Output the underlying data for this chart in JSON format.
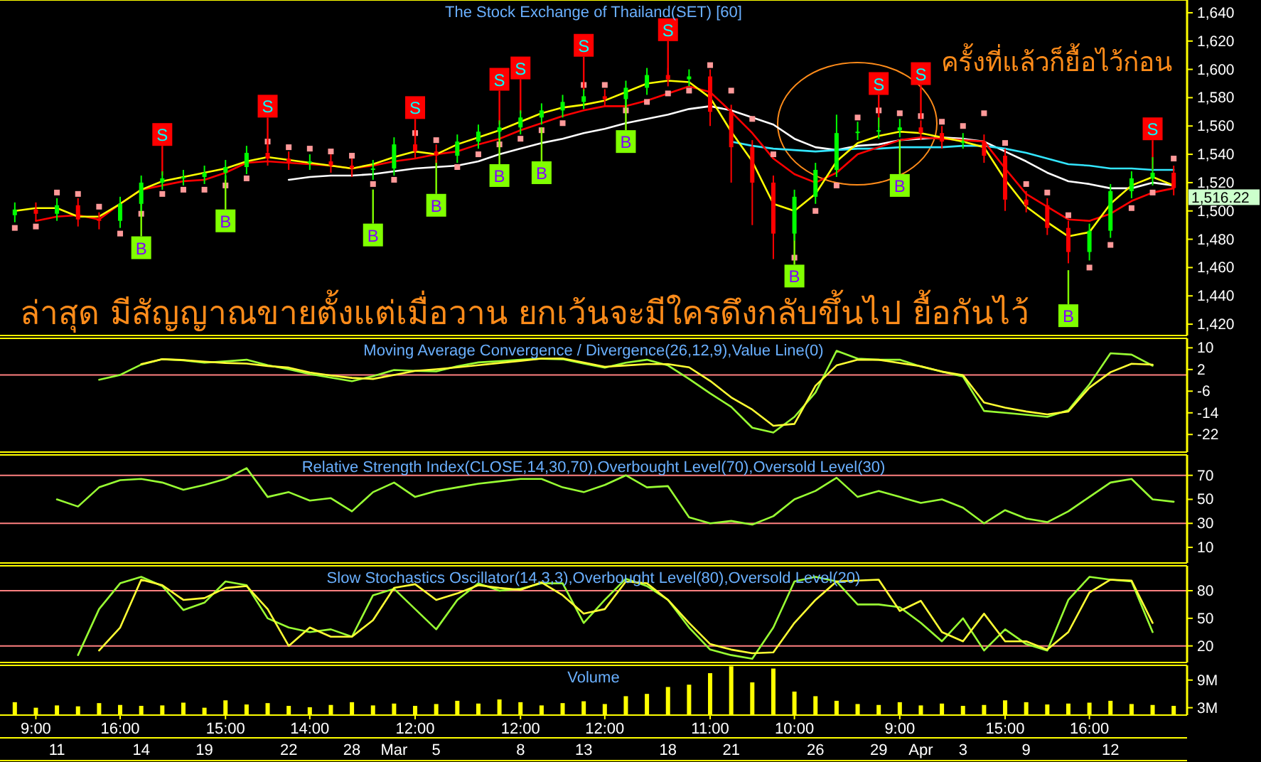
{
  "chart_data": [
    {
      "type": "candlestick",
      "title": "The Stock Exchange of Thailand(SET) [60]",
      "ylim": [
        1412,
        1649
      ],
      "tick_labels": "y",
      "yticks": [
        {
          "value": 1420,
          "label": "1,420"
        },
        {
          "value": 1440,
          "label": "1,440"
        },
        {
          "value": 1460,
          "label": "1,460"
        },
        {
          "value": 1480,
          "label": "1,480"
        },
        {
          "value": 1500,
          "label": "1,500"
        },
        {
          "value": 1520,
          "label": "1,520"
        },
        {
          "value": 1540,
          "label": "1,540"
        },
        {
          "value": 1560,
          "label": "1,560"
        },
        {
          "value": 1580,
          "label": "1,580"
        },
        {
          "value": 1600,
          "label": "1,600"
        },
        {
          "value": 1620,
          "label": "1,620"
        },
        {
          "value": 1640,
          "label": "1,640"
        }
      ],
      "categories": [
        null,
        null,
        null,
        null,
        null,
        null,
        null,
        null,
        null,
        null,
        null,
        null,
        null,
        null,
        null,
        null,
        null,
        null,
        null,
        null,
        null,
        null,
        null,
        null,
        null,
        null,
        null,
        null,
        null,
        null,
        null,
        null,
        null,
        null,
        null,
        null,
        null,
        null,
        null,
        null,
        null,
        null,
        null,
        null,
        null,
        null,
        null,
        null,
        null,
        null,
        null,
        null,
        null,
        null,
        null,
        null
      ],
      "ohlc": [
        [
          1497,
          1506,
          1492,
          1501
        ],
        [
          1501,
          1506,
          1493,
          1498
        ],
        [
          1498,
          1509,
          1493,
          1504
        ],
        [
          1504,
          1509,
          1489,
          1494
        ],
        [
          1494,
          1499,
          1487,
          1493
        ],
        [
          1493,
          1510,
          1488,
          1505
        ],
        [
          1505,
          1525,
          1500,
          1520
        ],
        [
          1520,
          1528,
          1515,
          1523
        ],
        [
          1523,
          1529,
          1518,
          1524
        ],
        [
          1524,
          1532,
          1519,
          1527
        ],
        [
          1527,
          1536,
          1522,
          1531
        ],
        [
          1531,
          1546,
          1526,
          1541
        ],
        [
          1541,
          1546,
          1532,
          1537
        ],
        [
          1537,
          1542,
          1529,
          1534
        ],
        [
          1534,
          1540,
          1529,
          1535
        ],
        [
          1535,
          1540,
          1527,
          1532
        ],
        [
          1532,
          1537,
          1524,
          1530
        ],
        [
          1530,
          1536,
          1522,
          1530
        ],
        [
          1530,
          1552,
          1525,
          1547
        ],
        [
          1547,
          1552,
          1537,
          1542
        ],
        [
          1542,
          1547,
          1534,
          1539
        ],
        [
          1539,
          1554,
          1534,
          1549
        ],
        [
          1549,
          1561,
          1544,
          1556
        ],
        [
          1556,
          1564,
          1551,
          1559
        ],
        [
          1559,
          1571,
          1554,
          1566
        ],
        [
          1566,
          1576,
          1561,
          1571
        ],
        [
          1571,
          1582,
          1566,
          1577
        ],
        [
          1577,
          1586,
          1572,
          1581
        ],
        [
          1581,
          1586,
          1574,
          1579
        ],
        [
          1579,
          1592,
          1574,
          1587
        ],
        [
          1587,
          1601,
          1582,
          1596
        ],
        [
          1596,
          1601,
          1588,
          1593
        ],
        [
          1593,
          1600,
          1588,
          1595
        ],
        [
          1595,
          1600,
          1560,
          1570
        ],
        [
          1570,
          1575,
          1520,
          1545
        ],
        [
          1545,
          1550,
          1490,
          1520
        ],
        [
          1520,
          1525,
          1466,
          1484
        ],
        [
          1484,
          1515,
          1479,
          1510
        ],
        [
          1510,
          1534,
          1505,
          1529
        ],
        [
          1529,
          1568,
          1524,
          1555
        ],
        [
          1555,
          1563,
          1550,
          1556
        ],
        [
          1556,
          1566,
          1551,
          1557
        ],
        [
          1557,
          1565,
          1552,
          1559
        ],
        [
          1559,
          1564,
          1550,
          1555
        ],
        [
          1555,
          1560,
          1544,
          1549
        ],
        [
          1549,
          1555,
          1544,
          1549
        ],
        [
          1549,
          1554,
          1534,
          1539
        ],
        [
          1539,
          1544,
          1500,
          1508
        ],
        [
          1508,
          1514,
          1499,
          1504
        ],
        [
          1504,
          1509,
          1483,
          1488
        ],
        [
          1488,
          1493,
          1463,
          1471
        ],
        [
          1471,
          1491,
          1465,
          1486
        ],
        [
          1486,
          1519,
          1481,
          1514
        ],
        [
          1514,
          1528,
          1509,
          1523
        ],
        [
          1523,
          1538,
          1518,
          1527
        ],
        [
          1527,
          1532,
          1511,
          1516.22
        ]
      ],
      "series": [
        {
          "type": "line",
          "color": "#ffffff",
          "values": [
            null,
            null,
            null,
            null,
            null,
            null,
            null,
            null,
            null,
            null,
            null,
            null,
            null,
            1522,
            1524,
            1525,
            1525,
            1526,
            1528,
            1530,
            1531,
            1532,
            1535,
            1540,
            1544,
            1548,
            1551,
            1555,
            1558,
            1562,
            1565,
            1568,
            1572,
            1574,
            1571,
            1566,
            1561,
            1551,
            1545,
            1543,
            1546,
            1547,
            1550,
            1551,
            1552,
            1551,
            1549,
            1542,
            1535,
            1527,
            1521,
            1519,
            1516,
            1516,
            1520,
            1518
          ]
        },
        {
          "type": "line",
          "color": "#33e6ff",
          "values": [
            null,
            null,
            null,
            null,
            null,
            null,
            null,
            null,
            null,
            null,
            null,
            null,
            null,
            null,
            null,
            null,
            null,
            null,
            null,
            null,
            null,
            null,
            null,
            null,
            null,
            null,
            null,
            null,
            null,
            null,
            null,
            null,
            null,
            null,
            1549,
            1546,
            1544,
            1543,
            1542,
            1543,
            1544,
            1544,
            1545,
            1545,
            1545,
            1546,
            1546,
            1544,
            1541,
            1537,
            1533,
            1532,
            1530,
            1530,
            1529,
            1529
          ]
        },
        {
          "type": "line",
          "color": "#ff0000",
          "values": [
            null,
            1493,
            1496,
            1497,
            1494,
            1505,
            1515,
            1518,
            1521,
            1522,
            1527,
            1534,
            1535,
            1534,
            1533,
            1532,
            1530,
            1532,
            1535,
            1537,
            1540,
            1542,
            1547,
            1551,
            1557,
            1562,
            1567,
            1571,
            1574,
            1574,
            1578,
            1583,
            1588,
            1584,
            1570,
            1555,
            1537,
            1526,
            1520,
            1527,
            1540,
            1545,
            1550,
            1552,
            1551,
            1550,
            1549,
            1530,
            1512,
            1503,
            1494,
            1493,
            1498,
            1507,
            1513,
            1516
          ]
        },
        {
          "type": "line",
          "color": "#ffff00",
          "values": [
            1500,
            1502,
            1502,
            1496,
            1496,
            1505,
            1515,
            1521,
            1524,
            1527,
            1530,
            1535,
            1538,
            1536,
            1534,
            1532,
            1530,
            1533,
            1538,
            1542,
            1540,
            1547,
            1552,
            1557,
            1563,
            1569,
            1573,
            1575,
            1578,
            1584,
            1590,
            1592,
            1591,
            1580,
            1556,
            1535,
            1505,
            1500,
            1512,
            1535,
            1548,
            1553,
            1556,
            1555,
            1552,
            1549,
            1545,
            1522,
            1503,
            1492,
            1482,
            1485,
            1505,
            1518,
            1524,
            1518
          ]
        },
        {
          "type": "scatter",
          "marker": "square",
          "color": "#ff9999",
          "values": [
            1488,
            1489,
            1513,
            1512,
            1503,
            1484,
            1498,
            1512,
            1515,
            1515,
            1518,
            1523,
            1549,
            1545,
            1544,
            1542,
            1539,
            1519,
            1522,
            1555,
            1550,
            1531,
            1540,
            1547,
            1551,
            1557,
            1562,
            1589,
            1589,
            1571,
            1577,
            1583,
            1585,
            1603,
            1585,
            1565,
            1540,
            1467,
            1500,
            1518,
            1566,
            1571,
            1569,
            1567,
            1563,
            1560,
            1569,
            1548,
            1519,
            1513,
            1497,
            1460,
            1476,
            1502,
            1513,
            1537
          ]
        },
        {
          "type": "scatter",
          "marker": "square",
          "color": "#ff0000",
          "values": [
            null,
            null,
            null,
            null,
            null,
            null,
            null,
            1554,
            null,
            null,
            null,
            null,
            1574,
            null,
            null,
            null,
            null,
            null,
            null,
            1573,
            null,
            null,
            null,
            1593,
            1601,
            null,
            null,
            1617,
            null,
            null,
            null,
            1628,
            null,
            null,
            null,
            null,
            null,
            null,
            null,
            null,
            null,
            1590,
            null,
            1597,
            null,
            null,
            null,
            null,
            null,
            null,
            null,
            null,
            null,
            null,
            1558,
            null
          ],
          "value_labels": [
            null,
            null,
            null,
            null,
            null,
            null,
            null,
            "S",
            null,
            null,
            null,
            null,
            "S",
            null,
            null,
            null,
            null,
            null,
            null,
            "S",
            null,
            null,
            null,
            "S",
            "S",
            null,
            null,
            "S",
            null,
            null,
            null,
            "S",
            null,
            null,
            null,
            null,
            null,
            null,
            null,
            null,
            null,
            "S",
            null,
            "S",
            null,
            null,
            null,
            null,
            null,
            null,
            null,
            null,
            null,
            null,
            "S",
            null
          ]
        },
        {
          "type": "scatter",
          "marker": "square",
          "color": "#80ff00",
          "values": [
            null,
            null,
            null,
            null,
            null,
            null,
            1474,
            null,
            null,
            null,
            1493,
            null,
            null,
            null,
            null,
            null,
            null,
            1483,
            null,
            null,
            1504,
            null,
            null,
            1525,
            null,
            1527,
            null,
            null,
            null,
            1549,
            null,
            null,
            null,
            null,
            null,
            null,
            null,
            1454,
            null,
            null,
            null,
            null,
            1518,
            null,
            null,
            null,
            null,
            null,
            null,
            null,
            1426,
            null,
            null,
            null,
            null,
            null
          ],
          "value_labels": [
            null,
            null,
            null,
            null,
            null,
            null,
            "B",
            null,
            null,
            null,
            "B",
            null,
            null,
            null,
            null,
            null,
            null,
            "B",
            null,
            null,
            "B",
            null,
            null,
            "B",
            null,
            "B",
            null,
            null,
            null,
            "B",
            null,
            null,
            null,
            null,
            null,
            null,
            null,
            "B",
            null,
            null,
            null,
            null,
            "B",
            null,
            null,
            null,
            null,
            null,
            null,
            null,
            "B",
            null,
            null,
            null,
            null,
            null
          ]
        }
      ],
      "annotations": [
        "ล่าสุด มีสัญญาณขายตั้งแต่เมื่อวาน ยกเว้นจะมีใครดึงกลับขึ้นไป ยื้อกันไว้",
        "ครั้งที่แล้วก็ยื้อไว้ก่อน",
        "1,516.22"
      ]
    },
    {
      "type": "line",
      "title": "Moving Average Convergence / Divergence(26,12,9),Value Line(0)",
      "ylim": [
        -28.5,
        13.5
      ],
      "yticks": [
        10,
        2,
        -6,
        -14,
        -22
      ],
      "tick_labels": "y",
      "categories": [
        null,
        null,
        null,
        null,
        null,
        null,
        null,
        null,
        null,
        null,
        null,
        null,
        null,
        null,
        null,
        null,
        null,
        null,
        null,
        null,
        null,
        null,
        null,
        null,
        null,
        null,
        null,
        null,
        null,
        null,
        null,
        null,
        null,
        null,
        null,
        null,
        null,
        null,
        null,
        null,
        null,
        null,
        null,
        null,
        null,
        null,
        null,
        null,
        null,
        null,
        null,
        null,
        null,
        null,
        null,
        null
      ],
      "ref_lines": [
        {
          "axis": "y",
          "value": 0,
          "color": "#ff8080"
        }
      ],
      "series": [
        {
          "color": "#99ff33",
          "values": [
            null,
            null,
            null,
            null,
            -1.8,
            0.0,
            3.8,
            5.8,
            5.4,
            4.5,
            5.0,
            5.6,
            3.6,
            2.1,
            0.3,
            -1.0,
            -2.3,
            -0.5,
            1.8,
            1.5,
            1.3,
            3.2,
            4.6,
            5.1,
            5.6,
            6.0,
            5.8,
            4.2,
            2.7,
            4.5,
            5.6,
            3.5,
            -1.5,
            -6.8,
            -11.8,
            -19.5,
            -21.3,
            -15.5,
            -6.5,
            8.9,
            6.0,
            5.6,
            5.6,
            3.1,
            1.2,
            -0.6,
            -13.3,
            -14.0,
            -14.7,
            -15.5,
            -13.0,
            -3.5,
            8.0,
            7.5,
            3.4,
            null
          ]
        },
        {
          "color": "#ffff33",
          "values": [
            null,
            null,
            null,
            null,
            null,
            null,
            4.0,
            5.8,
            5.5,
            4.9,
            4.4,
            4.2,
            3.3,
            2.7,
            0.9,
            -0.2,
            -1.1,
            -1.5,
            0.0,
            1.5,
            2.1,
            2.8,
            3.6,
            4.4,
            5.2,
            6.0,
            6.1,
            4.6,
            3.0,
            3.5,
            4.0,
            4.0,
            2.8,
            -2.2,
            -8.3,
            -12.8,
            -18.8,
            -18.1,
            -4.0,
            3.5,
            5.6,
            5.6,
            4.4,
            3.2,
            1.2,
            -0.1,
            -10.2,
            -12.1,
            -13.5,
            -14.6,
            -13.5,
            -4.7,
            1.0,
            4.1,
            3.8,
            null
          ]
        }
      ]
    },
    {
      "type": "line",
      "title": "Relative Strength Index(CLOSE,14,30,70),Overbought Level(70),Oversold Level(30)",
      "ylim": [
        -3,
        87
      ],
      "yticks": [
        70,
        50,
        30,
        10
      ],
      "tick_labels": "y",
      "categories": [
        null,
        null,
        null,
        null,
        null,
        null,
        null,
        null,
        null,
        null,
        null,
        null,
        null,
        null,
        null,
        null,
        null,
        null,
        null,
        null,
        null,
        null,
        null,
        null,
        null,
        null,
        null,
        null,
        null,
        null,
        null,
        null,
        null,
        null,
        null,
        null,
        null,
        null,
        null,
        null,
        null,
        null,
        null,
        null,
        null,
        null,
        null,
        null,
        null,
        null,
        null,
        null,
        null,
        null,
        null,
        null
      ],
      "ref_lines": [
        {
          "axis": "y",
          "value": 70,
          "color": "#ff8080"
        },
        {
          "axis": "y",
          "value": 30,
          "color": "#ff8080"
        }
      ],
      "series": [
        {
          "color": "#99ff33",
          "values": [
            null,
            null,
            50,
            44,
            60,
            66,
            67,
            64,
            58,
            62,
            67,
            76,
            52,
            56,
            49,
            51,
            40,
            56,
            64,
            52,
            57,
            60,
            63,
            65,
            67,
            67,
            60,
            56,
            62,
            70,
            60,
            61,
            35,
            30,
            32,
            29,
            36,
            50,
            57,
            68,
            52,
            57,
            52,
            47,
            50,
            43,
            30,
            41,
            34,
            31,
            40,
            52,
            64,
            67,
            50,
            48
          ]
        }
      ]
    },
    {
      "type": "line",
      "title": "Slow Stochastics Oscillator(14,3,3),Overbought Level(80),Oversold Level(20)",
      "ylim": [
        2,
        107
      ],
      "yticks": [
        80,
        50,
        20
      ],
      "tick_labels": "y",
      "categories": [
        null,
        null,
        null,
        null,
        null,
        null,
        null,
        null,
        null,
        null,
        null,
        null,
        null,
        null,
        null,
        null,
        null,
        null,
        null,
        null,
        null,
        null,
        null,
        null,
        null,
        null,
        null,
        null,
        null,
        null,
        null,
        null,
        null,
        null,
        null,
        null,
        null,
        null,
        null,
        null,
        null,
        null,
        null,
        null,
        null,
        null,
        null,
        null,
        null,
        null,
        null,
        null,
        null,
        null,
        null,
        null
      ],
      "ref_lines": [
        {
          "axis": "y",
          "value": 80,
          "color": "#ff8080"
        },
        {
          "axis": "y",
          "value": 20,
          "color": "#ff8080"
        }
      ],
      "series": [
        {
          "color": "#99ff33",
          "values": [
            null,
            null,
            null,
            10,
            60,
            88,
            95,
            85,
            59,
            67,
            90,
            86,
            50,
            40,
            35,
            38,
            30,
            75,
            82,
            60,
            38,
            70,
            88,
            80,
            82,
            88,
            88,
            45,
            70,
            93,
            85,
            70,
            40,
            16,
            10,
            6,
            40,
            90,
            95,
            90,
            65,
            65,
            62,
            45,
            25,
            50,
            15,
            38,
            22,
            15,
            70,
            95,
            92,
            90,
            35,
            null
          ]
        },
        {
          "color": "#ffff33",
          "values": [
            null,
            null,
            null,
            null,
            15,
            40,
            92,
            86,
            70,
            72,
            83,
            85,
            60,
            20,
            40,
            30,
            30,
            48,
            83,
            87,
            70,
            77,
            86,
            83,
            81,
            89,
            75,
            55,
            60,
            90,
            88,
            70,
            45,
            22,
            16,
            12,
            13,
            45,
            70,
            90,
            91,
            92,
            58,
            69,
            35,
            25,
            55,
            25,
            25,
            16,
            35,
            78,
            92,
            91,
            45,
            null
          ]
        }
      ]
    },
    {
      "type": "bar",
      "title": "Volume",
      "ylim": [
        1.4,
        12.2
      ],
      "color": "#ffff00",
      "yticks": [
        {
          "value": 9,
          "label": "9M"
        },
        {
          "value": 3,
          "label": "3M"
        }
      ],
      "categories": [
        null,
        "9:00",
        null,
        null,
        null,
        "16:00",
        null,
        null,
        null,
        null,
        "15:00",
        null,
        null,
        null,
        "14:00",
        null,
        null,
        null,
        null,
        "12:00",
        null,
        null,
        null,
        null,
        "12:00",
        null,
        null,
        null,
        "12:00",
        null,
        null,
        null,
        null,
        "11:00",
        null,
        null,
        null,
        "10:00",
        null,
        null,
        null,
        null,
        "9:00",
        null,
        null,
        null,
        null,
        "15:00",
        null,
        null,
        null,
        "16:00",
        null,
        null,
        null,
        null
      ],
      "values": [
        4.2,
        3.0,
        3.5,
        3.3,
        4.0,
        3.6,
        3.4,
        3.5,
        4.1,
        3.0,
        4.6,
        3.7,
        4.0,
        3.4,
        3.1,
        3.6,
        4.2,
        3.5,
        3.9,
        3.4,
        3.8,
        4.5,
        3.9,
        4.8,
        4.2,
        3.5,
        4.0,
        4.4,
        3.8,
        5.5,
        6.0,
        7.5,
        8.0,
        10.5,
        12.0,
        8.5,
        11.5,
        6.5,
        5.5,
        4.5,
        3.8,
        3.6,
        4.2,
        3.5,
        3.9,
        3.4,
        3.6,
        4.6,
        4.2,
        3.7,
        3.9,
        4.1,
        4.5,
        3.8,
        3.6,
        3.4
      ]
    },
    {
      "type": "other",
      "categories": [
        null,
        null,
        "11",
        null,
        null,
        null,
        "14",
        null,
        null,
        "19",
        null,
        null,
        null,
        "22",
        null,
        null,
        "28",
        null,
        "Mar",
        null,
        "5",
        null,
        null,
        null,
        "8",
        null,
        null,
        "13",
        null,
        null,
        null,
        "18",
        null,
        null,
        "21",
        null,
        null,
        null,
        "26",
        null,
        null,
        "29",
        null,
        "Apr",
        null,
        "3",
        null,
        null,
        "9",
        null,
        null,
        null,
        "12",
        null,
        null,
        null
      ]
    }
  ]
}
